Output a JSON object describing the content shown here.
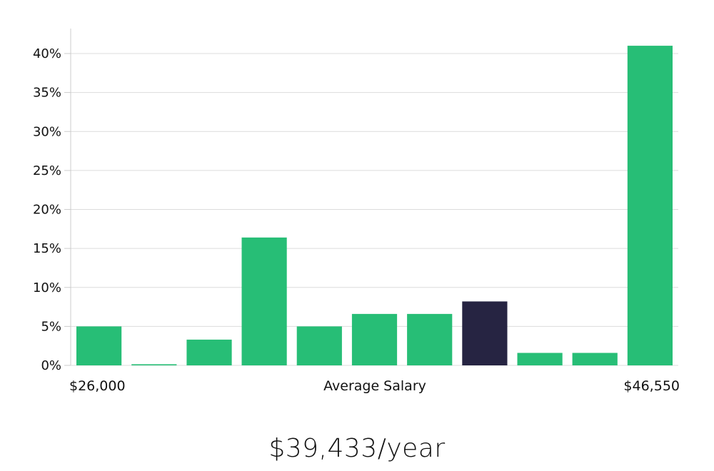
{
  "chart_data": {
    "type": "bar",
    "bins": 11,
    "values": [
      5,
      0.15,
      3.3,
      16.4,
      5,
      6.6,
      6.6,
      8.2,
      1.6,
      1.6,
      41
    ],
    "highlight_index": 7,
    "ylim": [
      0,
      40
    ],
    "yticks": [
      0,
      5,
      10,
      15,
      20,
      25,
      30,
      35,
      40
    ],
    "ytick_labels": [
      "0%",
      "5%",
      "10%",
      "15%",
      "20%",
      "25%",
      "30%",
      "35%",
      "40%"
    ],
    "x_left_label": "$26,000",
    "x_center_label": "Average Salary",
    "x_right_label": "$46,550",
    "grid": true,
    "colors": {
      "bar": "#27be76",
      "highlight": "#262442",
      "grid": "#dcdcdc",
      "axis": "#cccccc"
    }
  },
  "headline": "$39,433/year"
}
